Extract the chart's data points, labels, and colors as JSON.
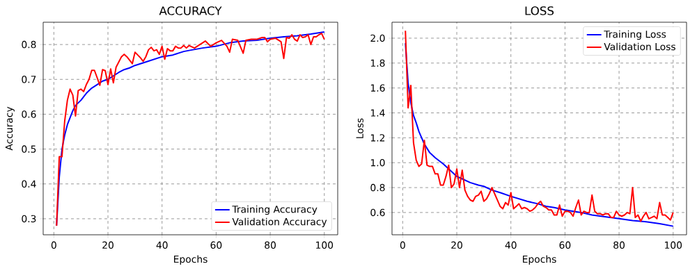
{
  "chart_data": [
    {
      "type": "line",
      "title": "ACCURACY",
      "xlabel": "Epochs",
      "ylabel": "Accuracy",
      "xlim": [
        -3.95,
        104.95
      ],
      "ylim": [
        0.254,
        0.864
      ],
      "xticks": [
        0,
        20,
        40,
        60,
        80,
        100
      ],
      "yticks": [
        0.3,
        0.4,
        0.5,
        0.6,
        0.7,
        0.8
      ],
      "grid": true,
      "legend": "bottom right",
      "series": [
        {
          "name": "Training Accuracy",
          "color": "#0000ff",
          "x": [
            1,
            2,
            3,
            4,
            5,
            6,
            7,
            8,
            10,
            12,
            14,
            16,
            18,
            20,
            22,
            24,
            26,
            28,
            30,
            32,
            34,
            36,
            38,
            40,
            44,
            48,
            50,
            55,
            60,
            65,
            70,
            75,
            80,
            85,
            90,
            95,
            100
          ],
          "values": [
            0.28,
            0.42,
            0.5,
            0.54,
            0.57,
            0.59,
            0.61,
            0.625,
            0.64,
            0.66,
            0.675,
            0.685,
            0.695,
            0.7,
            0.71,
            0.72,
            0.728,
            0.733,
            0.74,
            0.745,
            0.75,
            0.755,
            0.76,
            0.765,
            0.77,
            0.78,
            0.783,
            0.79,
            0.795,
            0.805,
            0.81,
            0.812,
            0.818,
            0.822,
            0.825,
            0.83,
            0.836
          ]
        },
        {
          "name": "Validation Accuracy",
          "color": "#ff0000",
          "x": [
            1,
            2,
            3,
            4,
            5,
            6,
            7,
            8,
            9,
            10,
            11,
            12,
            13,
            14,
            15,
            16,
            17,
            18,
            19,
            20,
            21,
            22,
            23,
            24,
            25,
            26,
            27,
            28,
            29,
            30,
            31,
            32,
            33,
            34,
            35,
            36,
            37,
            38,
            39,
            40,
            41,
            42,
            43,
            44,
            45,
            46,
            47,
            48,
            49,
            50,
            52,
            54,
            56,
            58,
            60,
            62,
            64,
            65,
            66,
            68,
            70,
            71,
            73,
            75,
            77,
            78,
            79,
            80,
            82,
            84,
            85,
            86,
            87,
            88,
            89,
            90,
            91,
            92,
            93,
            94,
            95,
            96,
            97,
            98,
            99,
            100
          ],
          "values": [
            0.28,
            0.478,
            0.478,
            0.58,
            0.64,
            0.672,
            0.655,
            0.595,
            0.668,
            0.672,
            0.665,
            0.685,
            0.7,
            0.726,
            0.726,
            0.705,
            0.683,
            0.728,
            0.725,
            0.685,
            0.73,
            0.69,
            0.735,
            0.75,
            0.765,
            0.772,
            0.765,
            0.755,
            0.745,
            0.778,
            0.77,
            0.762,
            0.752,
            0.765,
            0.785,
            0.792,
            0.782,
            0.785,
            0.772,
            0.795,
            0.758,
            0.788,
            0.782,
            0.782,
            0.795,
            0.79,
            0.79,
            0.797,
            0.79,
            0.797,
            0.79,
            0.8,
            0.81,
            0.795,
            0.805,
            0.812,
            0.795,
            0.778,
            0.815,
            0.812,
            0.775,
            0.812,
            0.815,
            0.815,
            0.82,
            0.82,
            0.808,
            0.815,
            0.818,
            0.808,
            0.76,
            0.82,
            0.818,
            0.828,
            0.815,
            0.81,
            0.828,
            0.82,
            0.822,
            0.828,
            0.8,
            0.822,
            0.822,
            0.828,
            0.832,
            0.815
          ]
        }
      ]
    },
    {
      "type": "line",
      "title": "LOSS",
      "xlabel": "Epochs",
      "ylabel": "Loss",
      "xlim": [
        -3.95,
        104.95
      ],
      "ylim": [
        0.421,
        2.128
      ],
      "xticks": [
        0,
        20,
        40,
        60,
        80,
        100
      ],
      "yticks": [
        0.6,
        0.8,
        {
          "value": 1.0,
          "label": "1.0"
        },
        1.2,
        1.4,
        1.6,
        1.8,
        {
          "value": 2.0,
          "label": "2.0"
        }
      ],
      "grid": true,
      "legend": "top right",
      "series": [
        {
          "name": "Training Loss",
          "color": "#0000ff",
          "x": [
            1,
            2,
            3,
            4,
            5,
            6,
            7,
            8,
            10,
            12,
            15,
            18,
            20,
            22,
            25,
            28,
            30,
            33,
            36,
            40,
            43,
            46,
            50,
            53,
            56,
            60,
            63,
            66,
            70,
            75,
            80,
            85,
            90,
            95,
            100
          ],
          "values": [
            1.96,
            1.64,
            1.48,
            1.38,
            1.32,
            1.25,
            1.2,
            1.15,
            1.08,
            1.04,
            0.99,
            0.93,
            0.89,
            0.87,
            0.84,
            0.82,
            0.81,
            0.78,
            0.76,
            0.73,
            0.71,
            0.69,
            0.67,
            0.65,
            0.64,
            0.62,
            0.61,
            0.6,
            0.58,
            0.565,
            0.55,
            0.535,
            0.525,
            0.51,
            0.49
          ]
        },
        {
          "name": "Validation Loss",
          "color": "#ff0000",
          "x": [
            1,
            2,
            3,
            4,
            5,
            6,
            7,
            8,
            9,
            10,
            11,
            12,
            13,
            14,
            15,
            16,
            17,
            18,
            19,
            20,
            21,
            22,
            23,
            24,
            25,
            26,
            27,
            28,
            29,
            30,
            31,
            32,
            33,
            34,
            35,
            36,
            37,
            38,
            39,
            40,
            41,
            42,
            43,
            44,
            45,
            46,
            47,
            48,
            49,
            50,
            51,
            52,
            53,
            54,
            55,
            56,
            57,
            58,
            59,
            60,
            61,
            62,
            63,
            64,
            65,
            66,
            67,
            68,
            69,
            70,
            71,
            72,
            73,
            74,
            75,
            76,
            77,
            78,
            79,
            80,
            81,
            82,
            83,
            84,
            85,
            86,
            87,
            88,
            89,
            90,
            91,
            92,
            93,
            94,
            95,
            96,
            97,
            98,
            99,
            100
          ],
          "values": [
            2.06,
            1.44,
            1.62,
            1.16,
            1.02,
            0.97,
            0.99,
            1.18,
            0.98,
            0.97,
            0.97,
            0.91,
            0.91,
            0.82,
            0.82,
            0.89,
            0.98,
            0.8,
            0.83,
            0.95,
            0.8,
            0.94,
            0.78,
            0.73,
            0.7,
            0.69,
            0.73,
            0.74,
            0.77,
            0.69,
            0.71,
            0.75,
            0.8,
            0.75,
            0.7,
            0.65,
            0.63,
            0.68,
            0.66,
            0.76,
            0.63,
            0.65,
            0.67,
            0.63,
            0.64,
            0.63,
            0.61,
            0.62,
            0.64,
            0.67,
            0.69,
            0.65,
            0.64,
            0.62,
            0.62,
            0.58,
            0.58,
            0.66,
            0.57,
            0.61,
            0.61,
            0.6,
            0.57,
            0.64,
            0.7,
            0.58,
            0.61,
            0.6,
            0.6,
            0.74,
            0.61,
            0.59,
            0.59,
            0.58,
            0.59,
            0.59,
            0.56,
            0.56,
            0.61,
            0.58,
            0.57,
            0.58,
            0.6,
            0.59,
            0.8,
            0.56,
            0.58,
            0.53,
            0.57,
            0.6,
            0.55,
            0.56,
            0.57,
            0.55,
            0.68,
            0.58,
            0.58,
            0.56,
            0.54,
            0.6
          ]
        }
      ]
    }
  ]
}
